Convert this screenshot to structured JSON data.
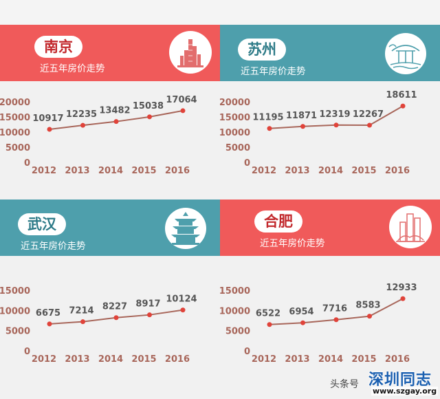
{
  "subtitle": "近五年房价走势",
  "watermark": "头条号",
  "brand": {
    "name": "深圳同志",
    "url": "www.szgay.org"
  },
  "colors": {
    "red": "#f05a5a",
    "teal": "#4e9fac",
    "line": "#a8665a",
    "dot": "#e0433a",
    "label": "#555555"
  },
  "chart_data": [
    {
      "type": "line",
      "title": "南京",
      "categories": [
        "2012",
        "2013",
        "2014",
        "2015",
        "2016"
      ],
      "values": [
        10917,
        12235,
        13482,
        15038,
        17064
      ],
      "yticks": [
        "20000",
        "15000",
        "10000",
        "5000",
        "0"
      ],
      "ylim": [
        0,
        20000
      ],
      "xlabel": "",
      "ylabel": "",
      "grid": false
    },
    {
      "type": "line",
      "title": "苏州",
      "categories": [
        "2012",
        "2013",
        "2014",
        "2015",
        "2016"
      ],
      "values": [
        11195,
        11871,
        12319,
        12267,
        18611
      ],
      "yticks": [
        "20000",
        "15000",
        "10000",
        "5000",
        "0"
      ],
      "ylim": [
        0,
        20000
      ],
      "xlabel": "",
      "ylabel": "",
      "grid": false
    },
    {
      "type": "line",
      "title": "武汉",
      "categories": [
        "2012",
        "2013",
        "2014",
        "2015",
        "2016"
      ],
      "values": [
        6675,
        7214,
        8227,
        8917,
        10124
      ],
      "yticks": [
        "15000",
        "10000",
        "5000",
        "0"
      ],
      "ylim": [
        0,
        15000
      ],
      "xlabel": "",
      "ylabel": "",
      "grid": false
    },
    {
      "type": "line",
      "title": "合肥",
      "categories": [
        "2012",
        "2013",
        "2014",
        "2015",
        "2016"
      ],
      "values": [
        6522,
        6954,
        7716,
        8583,
        12933
      ],
      "yticks": [
        "15000",
        "10000",
        "5000",
        "0"
      ],
      "ylim": [
        0,
        15000
      ],
      "xlabel": "",
      "ylabel": "",
      "grid": false
    }
  ]
}
